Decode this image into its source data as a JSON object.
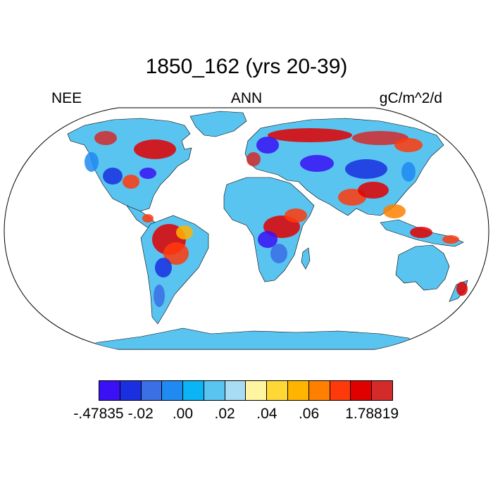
{
  "title": "1850_162 (yrs 20-39)",
  "labels": {
    "left": "NEE",
    "center": "ANN",
    "right": "gC/m^2/d"
  },
  "colorbar": {
    "colors": [
      "#3a10f5",
      "#1a30e0",
      "#3b6fe6",
      "#1f8af2",
      "#0ab4f5",
      "#5ac4f0",
      "#a8dcf4",
      "#fff5a0",
      "#ffd836",
      "#ffb400",
      "#ff8000",
      "#ff3a0a",
      "#e00000",
      "#d42a2a"
    ],
    "labels": [
      {
        "text": "-.47835",
        "boundary": 0
      },
      {
        "text": "-.02",
        "boundary": 2
      },
      {
        "text": ".00",
        "boundary": 4
      },
      {
        "text": ".02",
        "boundary": 6
      },
      {
        "text": ".04",
        "boundary": 8
      },
      {
        "text": ".06",
        "boundary": 10
      },
      {
        "text": "1.78819",
        "boundary": 13
      }
    ]
  },
  "map": {
    "projection": "robinson",
    "ocean_color": "#ffffff",
    "land_base_color": "#5ac4f0",
    "coastline_color": "#000000"
  }
}
